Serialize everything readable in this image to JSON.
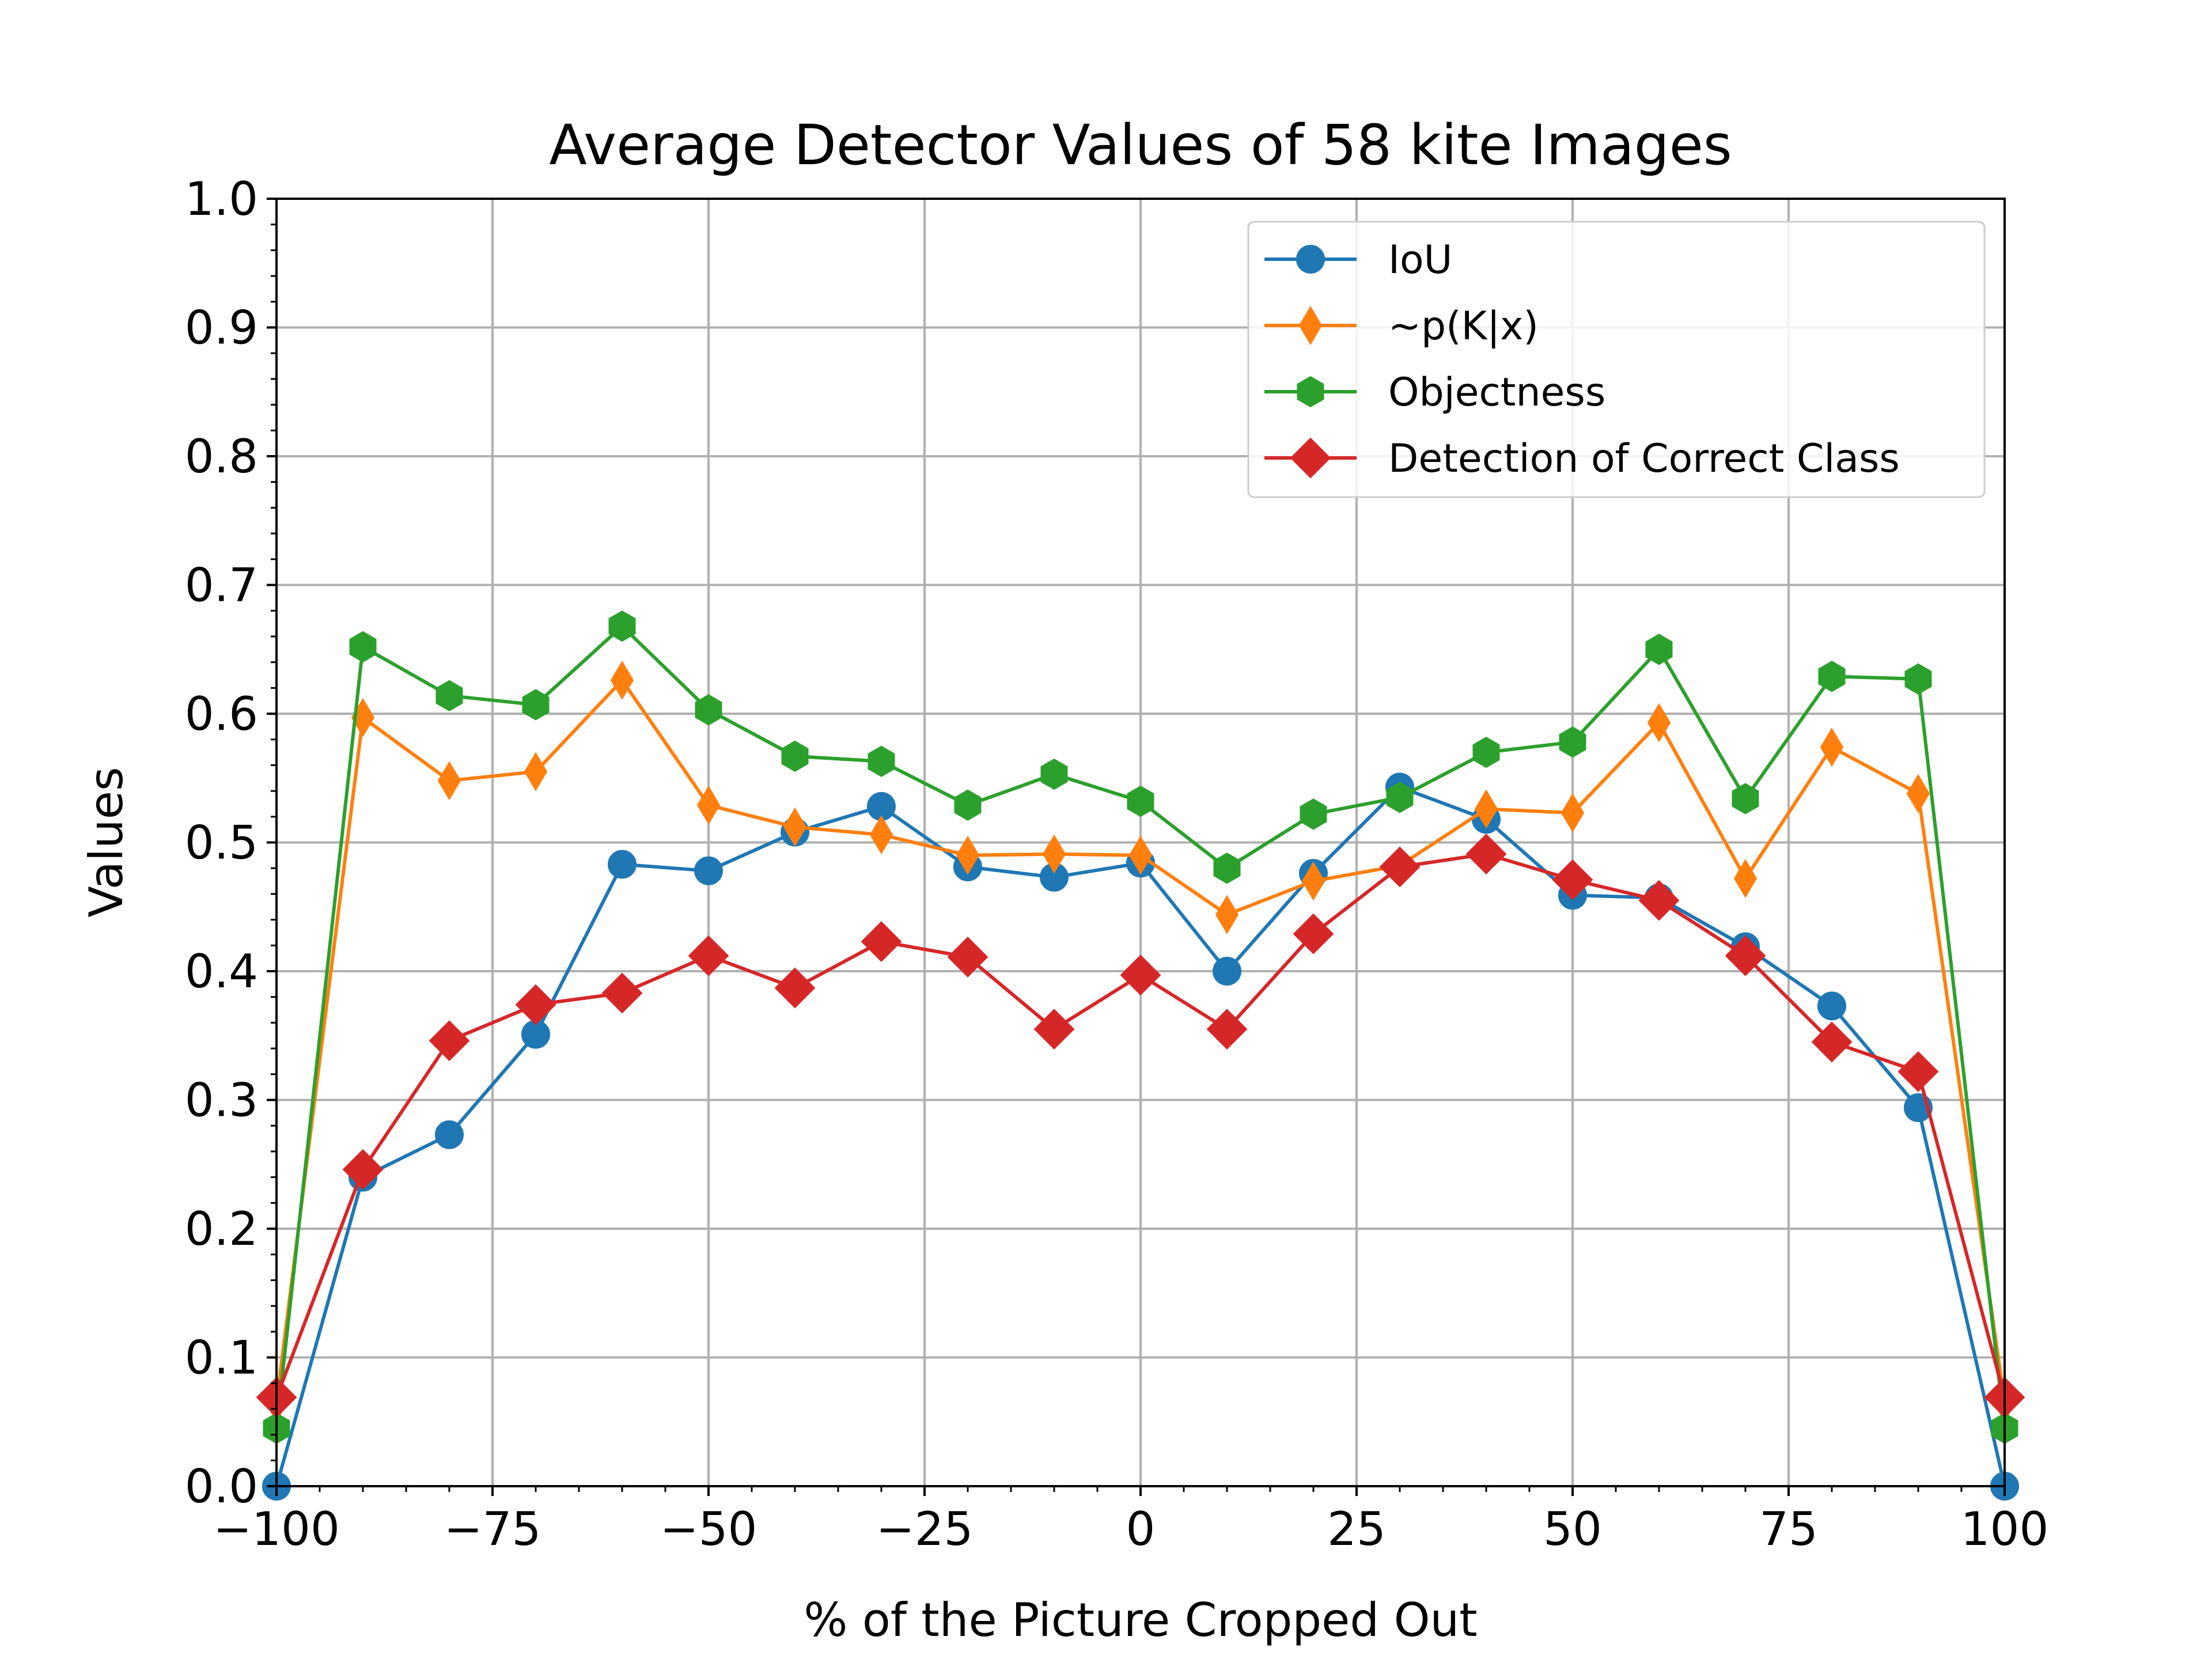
{
  "chart_data": {
    "type": "line",
    "title": "Average Detector Values of 58 kite Images",
    "xlabel": "% of the Picture Cropped Out",
    "ylabel": "Values",
    "xlim": [
      -100,
      100
    ],
    "ylim": [
      0.0,
      1.0
    ],
    "xticks": [
      -100,
      -75,
      -50,
      -25,
      0,
      25,
      50,
      75,
      100
    ],
    "xtick_labels": [
      "−100",
      "−75",
      "−50",
      "−25",
      "0",
      "25",
      "50",
      "75",
      "100"
    ],
    "yticks": [
      0.0,
      0.1,
      0.2,
      0.3,
      0.4,
      0.5,
      0.6,
      0.7,
      0.8,
      0.9,
      1.0
    ],
    "ytick_labels": [
      "0.0",
      "0.1",
      "0.2",
      "0.3",
      "0.4",
      "0.5",
      "0.6",
      "0.7",
      "0.8",
      "0.9",
      "1.0"
    ],
    "grid": true,
    "legend_position": "upper right",
    "x": [
      -100,
      -90,
      -80,
      -70,
      -60,
      -50,
      -40,
      -30,
      -20,
      -10,
      0,
      10,
      20,
      30,
      40,
      50,
      60,
      70,
      80,
      90,
      100
    ],
    "series": [
      {
        "name": "IoU",
        "color": "#1f77b4",
        "marker": "circle",
        "values": [
          0.0,
          0.24,
          0.273,
          0.351,
          0.483,
          0.478,
          0.508,
          0.528,
          0.481,
          0.473,
          0.484,
          0.4,
          0.476,
          0.543,
          0.518,
          0.459,
          0.457,
          0.419,
          0.373,
          0.294,
          0.0
        ]
      },
      {
        "name": "~p(K|x)",
        "color": "#ff7f0e",
        "marker": "thin-diamond",
        "values": [
          0.065,
          0.597,
          0.548,
          0.555,
          0.626,
          0.529,
          0.512,
          0.506,
          0.49,
          0.491,
          0.49,
          0.444,
          0.47,
          0.482,
          0.526,
          0.523,
          0.593,
          0.472,
          0.574,
          0.538,
          0.065
        ]
      },
      {
        "name": "Objectness",
        "color": "#2ca02c",
        "marker": "hexagon",
        "values": [
          0.045,
          0.652,
          0.614,
          0.607,
          0.668,
          0.603,
          0.567,
          0.563,
          0.529,
          0.553,
          0.532,
          0.48,
          0.522,
          0.535,
          0.57,
          0.578,
          0.65,
          0.534,
          0.629,
          0.627,
          0.045
        ]
      },
      {
        "name": "Detection of Correct Class",
        "color": "#d62728",
        "marker": "diamond",
        "values": [
          0.069,
          0.246,
          0.346,
          0.374,
          0.383,
          0.412,
          0.387,
          0.423,
          0.411,
          0.355,
          0.397,
          0.355,
          0.429,
          0.481,
          0.491,
          0.471,
          0.455,
          0.412,
          0.345,
          0.322,
          0.069
        ]
      }
    ]
  }
}
